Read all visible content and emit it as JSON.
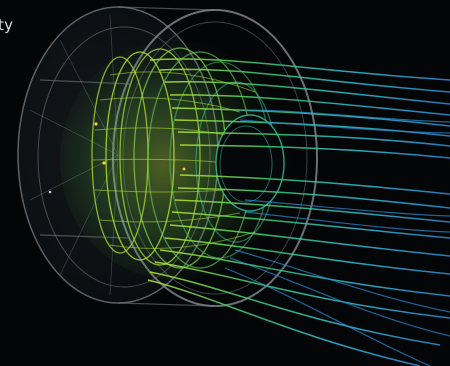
{
  "caption": {
    "text": "ty"
  },
  "visual": {
    "subject": "cfd-streamline-visualization",
    "colors": {
      "background": "#030507",
      "housing": "#8c969e",
      "core_yellow_green": "#b9e82a",
      "mid_green": "#37d07a",
      "cyan": "#2ec3d7",
      "blue": "#2b8fd6"
    }
  }
}
